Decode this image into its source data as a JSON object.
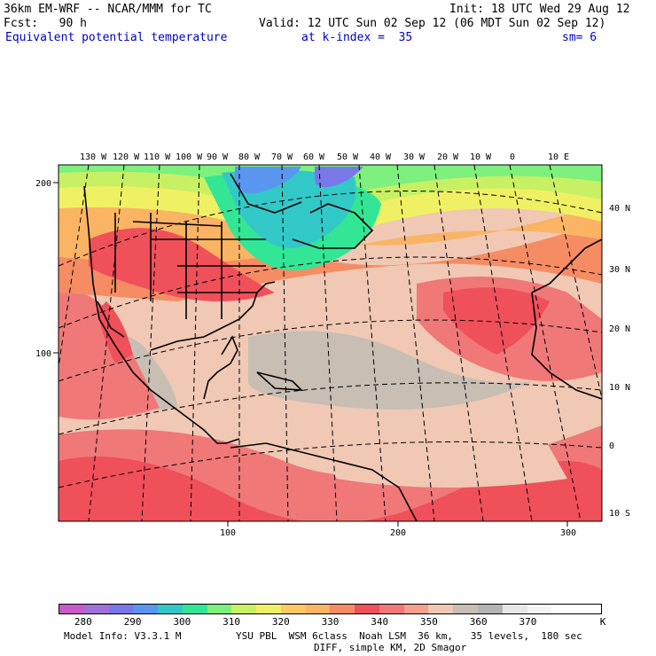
{
  "header": {
    "model": "36km EM-WRF -- NCAR/MMM for TC",
    "init": "Init: 18 UTC Wed 29 Aug 12",
    "fcst": "Fcst:   90 h",
    "valid": "Valid: 12 UTC Sun 02 Sep 12 (06 MDT Sun 02 Sep 12)",
    "field": "Equivalent potential temperature",
    "level": "at k-index =  35",
    "smooth": "sm= 6"
  },
  "top_lon_labels": [
    "130 W",
    "120 W",
    "110 W",
    "100 W",
    "90 W",
    "80 W",
    "70 W",
    "60 W",
    "50 W",
    "40 W",
    "30 W",
    "20 W",
    "10 W",
    "0",
    "10 E"
  ],
  "right_lat_labels": [
    "40 N",
    "30 N",
    "20 N",
    "10 N",
    "0",
    "10 S"
  ],
  "left_grid_labels": [
    "200",
    "100"
  ],
  "bottom_grid_labels": [
    "100",
    "200",
    "300"
  ],
  "colorbar": {
    "colors": [
      "#c85ac8",
      "#a070d8",
      "#7878e8",
      "#5a96f0",
      "#32c8c8",
      "#32e696",
      "#7ef07e",
      "#c8f064",
      "#f0f064",
      "#ffc864",
      "#fab464",
      "#f58c64",
      "#f0505a",
      "#f07878",
      "#f5a08c",
      "#f0c8b4",
      "#c8beb4",
      "#b4b4b4",
      "#e6e6e6",
      "#f5f5f5",
      "#ffffff",
      "#ffffff"
    ],
    "labels": [
      "280",
      "290",
      "300",
      "310",
      "320",
      "330",
      "340",
      "350",
      "360",
      "370"
    ],
    "unit": "K"
  },
  "footer": {
    "line1_left": "Model Info: V3.3.1 M",
    "line1_right": "YSU PBL  WSM 6class  Noah LSM  36 km,   35 levels,  180 sec",
    "line2": "DIFF, simple KM, 2D Smagor"
  }
}
